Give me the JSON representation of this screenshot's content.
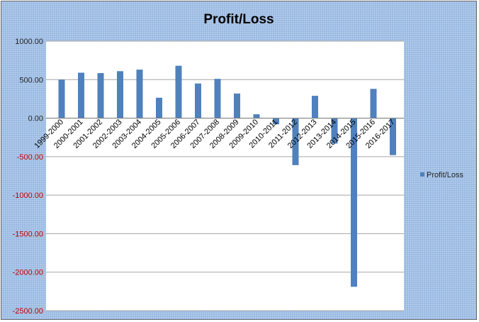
{
  "chart_data": {
    "type": "bar",
    "title": "Profit/Loss",
    "categories": [
      "1999-2000",
      "2000-2001",
      "2001-2002",
      "2002-2003",
      "2003-2004",
      "2004-2005",
      "2005-2006",
      "2006-2007",
      "2007-2008",
      "2008-2009",
      "2009-2010",
      "2010-2011",
      "2011-2012",
      "2012-2013",
      "2013-2014",
      "2014-2015",
      "2015-2016",
      "2016-2017"
    ],
    "series": [
      {
        "name": "Profit/Loss",
        "values": [
          500,
          590,
          585,
          610,
          630,
          265,
          680,
          450,
          510,
          320,
          50,
          -80,
          -610,
          290,
          -330,
          -2190,
          380,
          -480
        ]
      }
    ],
    "y_ticks": [
      "1000.00",
      "500.00",
      "0.00",
      "-500.00",
      "-1000.00",
      "-1500.00",
      "-2000.00",
      "-2500.00"
    ],
    "ylim": [
      -2500,
      1000
    ],
    "grid": true,
    "legend_position": "right",
    "colors": {
      "bar": "#4f81bd",
      "negative_tick_label": "#c00000",
      "frame": "#8fb3e0",
      "plot_background": "#ffffff"
    }
  }
}
